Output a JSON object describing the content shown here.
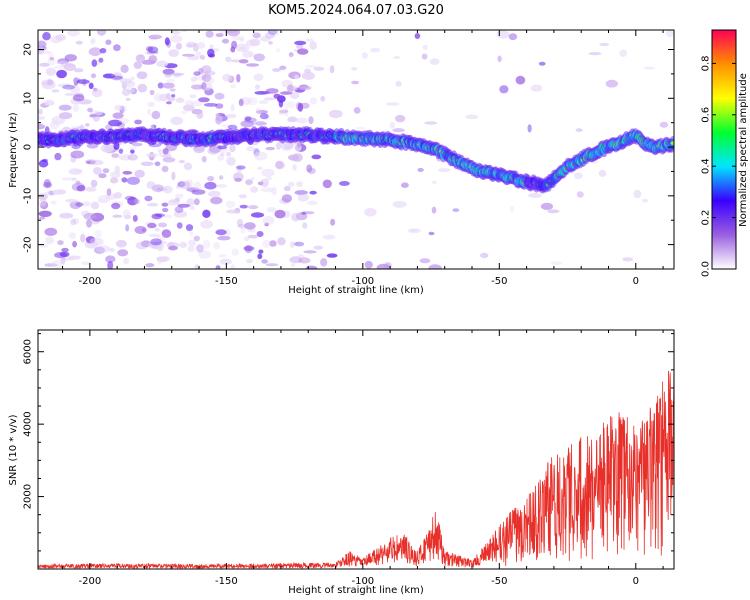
{
  "title": "KOM5.2024.064.07.03.G20",
  "chart_data": [
    {
      "type": "heatmap",
      "xlabel": "Height of straight line (km)",
      "ylabel": "Frequency (Hz)",
      "xlim": [
        -219,
        14
      ],
      "ylim": [
        -25,
        24
      ],
      "xticks": [
        -200,
        -150,
        -100,
        -50,
        0
      ],
      "yticks": [
        -20,
        -10,
        0,
        10,
        20
      ],
      "colorbar": {
        "label": "Normalized spectral amplitude",
        "range": [
          0.0,
          0.93
        ],
        "ticks": [
          0.0,
          0.2,
          0.4,
          0.6,
          0.8
        ],
        "colormap": [
          "#ffffff",
          "#9b5fe0",
          "#3a00ff",
          "#00e5ff",
          "#00ff30",
          "#ffff00",
          "#ff9000",
          "#ff0055"
        ]
      },
      "ridge": {
        "x": [
          -215,
          -200,
          -180,
          -160,
          -140,
          -120,
          -105,
          -90,
          -75,
          -60,
          -45,
          -33,
          -25,
          -15,
          -5,
          0,
          5,
          14
        ],
        "y": [
          1.5,
          2.0,
          2.5,
          1.5,
          2.5,
          2.5,
          2.0,
          1.5,
          0.0,
          -4.5,
          -6.5,
          -8.0,
          -4.0,
          -1.0,
          1.0,
          2.5,
          0.0,
          0.5
        ]
      }
    },
    {
      "type": "line",
      "xlabel": "Height of straight line (km)",
      "ylabel": "SNR (10 * v/v)",
      "xlim": [
        -219,
        14
      ],
      "ylim": [
        0,
        6600
      ],
      "xticks": [
        -200,
        -150,
        -100,
        -50,
        0
      ],
      "yticks": [
        2000,
        4000,
        6000
      ],
      "color": "#e8302a",
      "envelope": {
        "x": [
          -219,
          -200,
          -150,
          -110,
          -105,
          -100,
          -95,
          -90,
          -85,
          -80,
          -75,
          -73,
          -70,
          -65,
          -60,
          -55,
          -50,
          -45,
          -40,
          -35,
          -30,
          -25,
          -20,
          -15,
          -10,
          -5,
          0,
          5,
          10,
          14
        ],
        "y": [
          120,
          150,
          140,
          180,
          500,
          300,
          600,
          900,
          1000,
          500,
          1400,
          1650,
          500,
          400,
          250,
          700,
          1200,
          1700,
          2100,
          2500,
          3300,
          3600,
          3700,
          3800,
          4200,
          4400,
          3900,
          4500,
          5200,
          5800
        ]
      }
    }
  ]
}
